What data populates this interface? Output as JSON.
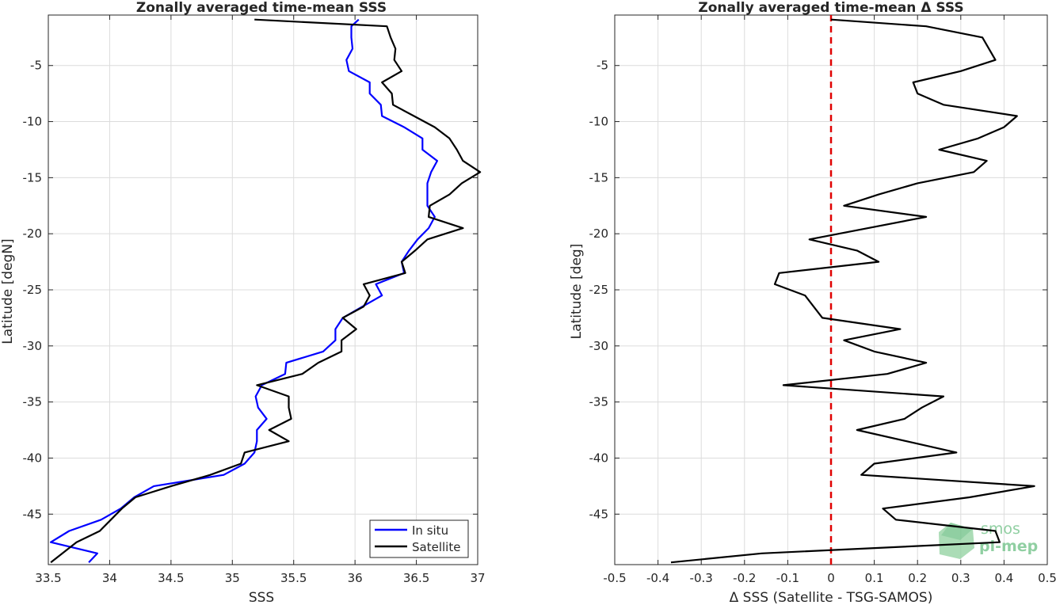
{
  "chart_data": [
    {
      "type": "line",
      "title": "Zonally averaged time-mean SSS",
      "xlabel": "SSS",
      "ylabel": "Latitude [degN]",
      "xlim": [
        33.5,
        37
      ],
      "ylim": [
        -49.5,
        -0.5
      ],
      "xticks": [
        33.5,
        34,
        34.5,
        35,
        35.5,
        36,
        36.5,
        37
      ],
      "xtick_labels": [
        "33.5",
        "34",
        "34.5",
        "35",
        "35.5",
        "36",
        "36.5",
        "37"
      ],
      "yticks": [
        -5,
        -10,
        -15,
        -20,
        -25,
        -30,
        -35,
        -40,
        -45
      ],
      "ytick_labels": [
        "-5",
        "-10",
        "-15",
        "-20",
        "-25",
        "-30",
        "-35",
        "-40",
        "-45"
      ],
      "grid": true,
      "legend_position": "bottom-right",
      "series": [
        {
          "name": "In situ",
          "color": "#0000ff",
          "x": [
            36.03,
            35.97,
            35.97,
            35.98,
            35.93,
            35.95,
            36.12,
            36.12,
            36.21,
            36.22,
            36.4,
            36.55,
            36.55,
            36.67,
            36.62,
            36.59,
            36.59,
            36.59,
            36.65,
            36.6,
            36.51,
            36.44,
            36.38,
            36.4,
            36.17,
            36.22,
            36.06,
            35.9,
            35.84,
            35.84,
            35.74,
            35.44,
            35.43,
            35.24,
            35.19,
            35.21,
            35.28,
            35.2,
            35.2,
            35.18,
            35.1,
            34.93,
            34.36,
            34.2,
            34.09,
            33.93,
            33.67,
            33.52,
            33.9,
            33.83
          ],
          "y": [
            -0.9,
            -1.5,
            -2.5,
            -3.5,
            -4.5,
            -5.5,
            -6.5,
            -7.5,
            -8.5,
            -9.5,
            -10.5,
            -11.5,
            -12.5,
            -13.5,
            -14.5,
            -15.5,
            -16.5,
            -17.5,
            -18.5,
            -19.5,
            -20.5,
            -21.5,
            -22.5,
            -23.5,
            -24.5,
            -25.5,
            -26.5,
            -27.5,
            -28.5,
            -29.5,
            -30.5,
            -31.5,
            -32.5,
            -33.5,
            -34.5,
            -35.5,
            -36.5,
            -37.5,
            -38.5,
            -39.5,
            -40.5,
            -41.5,
            -42.5,
            -43.5,
            -44.5,
            -45.5,
            -46.5,
            -47.5,
            -48.5,
            -49.3
          ]
        },
        {
          "name": "Satellite",
          "color": "#000000",
          "x": [
            35.18,
            36.26,
            36.29,
            36.33,
            36.32,
            36.38,
            36.22,
            36.3,
            36.31,
            36.48,
            36.65,
            36.77,
            36.83,
            36.88,
            37.02,
            36.87,
            36.77,
            36.61,
            36.6,
            36.88,
            36.59,
            36.49,
            36.38,
            36.41,
            36.07,
            36.12,
            36.07,
            35.9,
            36.01,
            35.89,
            35.89,
            35.7,
            35.57,
            35.2,
            35.46,
            35.46,
            35.48,
            35.3,
            35.46,
            35.1,
            35.07,
            34.82,
            34.5,
            34.21,
            34.1,
            34.01,
            33.92,
            33.73,
            33.52
          ],
          "y": [
            -0.9,
            -1.5,
            -2.5,
            -3.5,
            -4.5,
            -5.5,
            -6.5,
            -7.5,
            -8.5,
            -9.5,
            -10.5,
            -11.5,
            -12.5,
            -13.5,
            -14.5,
            -15.5,
            -16.5,
            -17.5,
            -18.5,
            -19.5,
            -20.5,
            -21.5,
            -22.5,
            -23.5,
            -24.5,
            -25.5,
            -26.5,
            -27.5,
            -28.5,
            -29.5,
            -30.5,
            -31.5,
            -32.5,
            -33.5,
            -34.5,
            -35.5,
            -36.5,
            -37.5,
            -38.5,
            -39.5,
            -40.5,
            -41.5,
            -42.5,
            -43.5,
            -44.5,
            -45.5,
            -46.5,
            -47.5,
            -49.3
          ]
        }
      ]
    },
    {
      "type": "line",
      "title": "Zonally averaged time-mean Δ SSS",
      "xlabel": "Δ SSS (Satellite - TSG-SAMOS)",
      "ylabel": "Latitude [deg]",
      "xlim": [
        -0.5,
        0.5
      ],
      "ylim": [
        -49.5,
        -0.5
      ],
      "xticks": [
        -0.5,
        -0.4,
        -0.3,
        -0.2,
        -0.1,
        0,
        0.1,
        0.2,
        0.3,
        0.4,
        0.5
      ],
      "xtick_labels": [
        "-0.5",
        "-0.4",
        "-0.3",
        "-0.2",
        "-0.1",
        "0",
        "0.1",
        "0.2",
        "0.3",
        "0.4",
        "0.5"
      ],
      "yticks": [
        -5,
        -10,
        -15,
        -20,
        -25,
        -30,
        -35,
        -40,
        -45
      ],
      "ytick_labels": [
        "-5",
        "-10",
        "-15",
        "-20",
        "-25",
        "-30",
        "-35",
        "-40",
        "-45"
      ],
      "grid": true,
      "reference_line": {
        "x": 0,
        "color": "#e00000",
        "style": "dashed"
      },
      "series": [
        {
          "color": "#000000",
          "x": [
            0.0,
            0.22,
            0.35,
            0.38,
            0.3,
            0.19,
            0.2,
            0.26,
            0.43,
            0.4,
            0.34,
            0.25,
            0.36,
            0.33,
            0.2,
            0.11,
            0.03,
            0.22,
            -0.05,
            0.06,
            0.11,
            -0.12,
            -0.13,
            -0.06,
            -0.02,
            0.16,
            0.03,
            0.1,
            0.22,
            0.13,
            -0.11,
            0.26,
            0.21,
            0.17,
            0.06,
            0.29,
            0.1,
            0.07,
            0.47,
            0.32,
            0.12,
            0.15,
            0.38,
            0.39,
            -0.16,
            -0.37
          ],
          "y": [
            -0.9,
            -1.5,
            -2.5,
            -4.5,
            -5.5,
            -6.5,
            -7.5,
            -8.5,
            -9.5,
            -10.5,
            -11.5,
            -12.5,
            -13.5,
            -14.5,
            -15.5,
            -16.5,
            -17.5,
            -18.5,
            -20.5,
            -21.5,
            -22.5,
            -23.5,
            -24.5,
            -25.5,
            -27.5,
            -28.5,
            -29.5,
            -30.5,
            -31.5,
            -32.5,
            -33.5,
            -34.5,
            -35.5,
            -36.5,
            -37.5,
            -39.5,
            -40.5,
            -41.5,
            -42.5,
            -43.5,
            -44.5,
            -45.5,
            -46.5,
            -47.5,
            -48.5,
            -49.3
          ]
        }
      ]
    }
  ],
  "watermark": {
    "text": "smos\npi-mep",
    "color": "#4caf6e"
  }
}
